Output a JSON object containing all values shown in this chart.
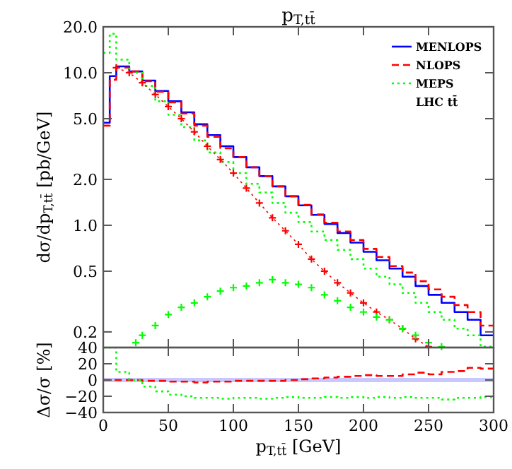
{
  "chart_data": [
    {
      "type": "step",
      "title": "p$_{T,tt̄}$",
      "ylabel": "dσ/dp$_{T,tt̄}$ [pb/GeV]",
      "log": "y",
      "legend": "top right",
      "tick_labels": "y",
      "annotations": [
        "LHC tt̄"
      ],
      "xlim": [
        0,
        300
      ],
      "xticks": [
        {
          "value": 0,
          "label": null
        },
        {
          "value": 50,
          "label": null
        },
        {
          "value": 100,
          "label": null
        },
        {
          "value": 150,
          "label": null
        },
        {
          "value": 200,
          "label": null
        },
        {
          "value": 250,
          "label": null
        },
        {
          "value": 300,
          "label": null
        }
      ],
      "ylim": [
        0.158,
        20
      ],
      "yticks": [
        {
          "value": 0.2,
          "label": "0.2"
        },
        {
          "value": 0.5,
          "label": "0.5"
        },
        {
          "value": 1,
          "label": "1.0"
        },
        {
          "value": 2,
          "label": "2.0"
        },
        {
          "value": 5,
          "label": "5.0"
        },
        {
          "value": 10,
          "label": "10.0"
        },
        {
          "value": 20,
          "label": "20.0"
        }
      ],
      "series": [
        {
          "name": "MENLOPS",
          "color": "#0000ff",
          "line_style": "solid",
          "x": [
            0,
            5,
            10,
            20,
            30,
            40,
            50,
            60,
            70,
            80,
            90,
            100,
            110,
            120,
            130,
            140,
            150,
            160,
            170,
            180,
            190,
            200,
            210,
            220,
            230,
            240,
            250,
            260,
            270,
            280,
            290,
            300
          ],
          "values": [
            4.7,
            9.5,
            11.0,
            10.2,
            8.9,
            7.6,
            6.5,
            5.5,
            4.6,
            3.9,
            3.3,
            2.8,
            2.4,
            2.1,
            1.8,
            1.55,
            1.35,
            1.17,
            1.02,
            0.89,
            0.77,
            0.67,
            0.59,
            0.52,
            0.46,
            0.4,
            0.35,
            0.31,
            0.27,
            0.24,
            0.19,
            0.19
          ]
        },
        {
          "name": "NLOPS",
          "color": "#ff0000",
          "line_style": "dashed",
          "x": [
            0,
            5,
            10,
            20,
            30,
            40,
            50,
            60,
            70,
            80,
            90,
            100,
            110,
            120,
            130,
            140,
            150,
            160,
            170,
            180,
            190,
            200,
            210,
            220,
            230,
            240,
            250,
            260,
            270,
            280,
            290,
            300
          ],
          "values": [
            4.5,
            9.0,
            10.8,
            10.2,
            8.8,
            7.5,
            6.4,
            5.4,
            4.5,
            3.8,
            3.2,
            2.8,
            2.4,
            2.1,
            1.8,
            1.55,
            1.36,
            1.18,
            1.04,
            0.91,
            0.8,
            0.7,
            0.62,
            0.54,
            0.49,
            0.43,
            0.38,
            0.34,
            0.3,
            0.27,
            0.22,
            0.22
          ]
        },
        {
          "name": "MEPS",
          "color": "#00ff00",
          "line_style": "dotted",
          "x": [
            0,
            5,
            10,
            20,
            30,
            40,
            50,
            60,
            70,
            80,
            90,
            100,
            110,
            120,
            130,
            140,
            150,
            160,
            170,
            180,
            190,
            200,
            210,
            220,
            230,
            240,
            250,
            260,
            270,
            280,
            290,
            300
          ],
          "values": [
            13.5,
            18.0,
            12.2,
            10.0,
            8.2,
            6.5,
            5.3,
            4.4,
            3.6,
            3.0,
            2.6,
            2.2,
            1.87,
            1.64,
            1.4,
            1.21,
            1.05,
            0.91,
            0.8,
            0.69,
            0.6,
            0.52,
            0.46,
            0.41,
            0.36,
            0.31,
            0.27,
            0.24,
            0.21,
            0.19,
            0.16,
            0.16
          ]
        },
        {
          "type": "line",
          "color": "#ff0000",
          "line_style": "dotted",
          "marker": "cross",
          "x": [
            10,
            20,
            30,
            40,
            50,
            60,
            70,
            80,
            90,
            100,
            110,
            120,
            130,
            140,
            150,
            160,
            170,
            180,
            190,
            200,
            210,
            220,
            230,
            240,
            250
          ],
          "values": [
            10.8,
            10.0,
            8.6,
            7.2,
            6.0,
            5.0,
            4.1,
            3.3,
            2.7,
            2.2,
            1.75,
            1.4,
            1.12,
            0.92,
            0.75,
            0.6,
            0.5,
            0.42,
            0.36,
            0.31,
            0.27,
            0.24,
            0.21,
            0.18,
            0.16
          ]
        },
        {
          "type": "scatter",
          "color": "#00ff00",
          "marker": "cross",
          "x": [
            25,
            30,
            40,
            50,
            60,
            70,
            80,
            90,
            100,
            110,
            120,
            130,
            140,
            150,
            160,
            170,
            180,
            190,
            200,
            210,
            220,
            230,
            240,
            250,
            260
          ],
          "values": [
            0.17,
            0.19,
            0.22,
            0.26,
            0.29,
            0.31,
            0.34,
            0.37,
            0.39,
            0.4,
            0.42,
            0.44,
            0.42,
            0.41,
            0.39,
            0.35,
            0.32,
            0.29,
            0.27,
            0.25,
            0.24,
            0.21,
            0.19,
            0.17,
            0.16
          ]
        }
      ]
    },
    {
      "type": "step",
      "xlabel": "p$_{T,tt̄}$ [GeV]",
      "ylabel": "Δσ/σ [%]",
      "xlim": [
        0,
        300
      ],
      "xticks": [
        0,
        50,
        100,
        150,
        200,
        250,
        300
      ],
      "ylim": [
        -40,
        40
      ],
      "yticks": [
        {
          "value": -40,
          "label": "−40"
        },
        {
          "value": -20,
          "label": "−20"
        },
        0,
        20,
        40
      ],
      "ref_lines": [
        {
          "axis": "y",
          "value": 0,
          "color": "#c8c8ff"
        }
      ],
      "series": [
        {
          "color": "#ff0000",
          "line_style": "dashed",
          "x": [
            0,
            10,
            20,
            30,
            40,
            50,
            60,
            70,
            80,
            90,
            100,
            110,
            120,
            130,
            140,
            150,
            160,
            170,
            180,
            190,
            200,
            210,
            220,
            230,
            240,
            250,
            260,
            270,
            280,
            290,
            300
          ],
          "values": [
            0,
            0,
            0,
            -1,
            -1,
            -2,
            -2,
            -3,
            -2,
            -2,
            -1,
            -1,
            -1,
            -1,
            0,
            1,
            2,
            3,
            4,
            5,
            6,
            5,
            5,
            7,
            9,
            7,
            10,
            11,
            15,
            14,
            14
          ]
        },
        {
          "color": "#00ff00",
          "line_style": "dotted",
          "x": [
            0,
            10,
            20,
            30,
            40,
            50,
            60,
            70,
            80,
            90,
            100,
            110,
            120,
            130,
            140,
            150,
            160,
            170,
            180,
            190,
            200,
            210,
            220,
            230,
            240,
            250,
            260,
            270,
            280,
            290,
            300
          ],
          "values": [
            40,
            10,
            0,
            -8,
            -14,
            -18,
            -20,
            -22,
            -22,
            -23,
            -22,
            -22,
            -23,
            -22,
            -21,
            -22,
            -22,
            -21,
            -22,
            -21,
            -22,
            -21,
            -22,
            -21,
            -22,
            -22,
            -24,
            -22,
            -22,
            -21,
            -21
          ]
        }
      ]
    }
  ]
}
